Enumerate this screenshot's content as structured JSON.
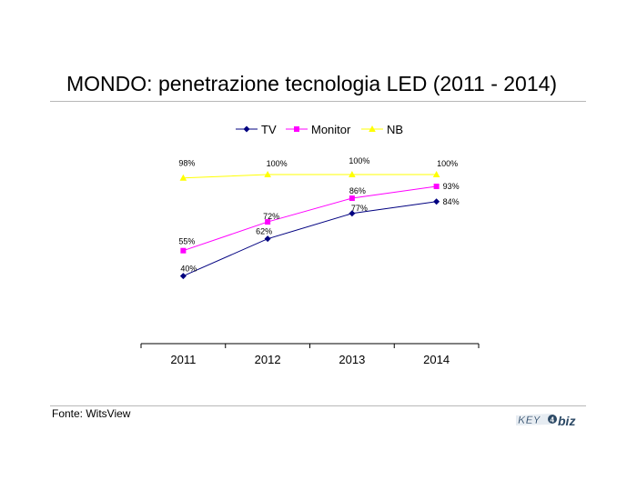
{
  "title": "MONDO: penetrazione tecnologia LED (2011 - 2014)",
  "source": "Fonte: WitsView",
  "logo_text": "KEY4biz",
  "chart_data": {
    "type": "line",
    "categories": [
      "2011",
      "2012",
      "2013",
      "2014"
    ],
    "ylim": [
      0,
      100
    ],
    "grid": false,
    "legend_position": "top",
    "series": [
      {
        "name": "TV",
        "values": [
          40,
          62,
          77,
          84
        ],
        "labels": [
          "40%",
          "62%",
          "77%",
          "84%"
        ],
        "color": "#000080",
        "marker": "diamond"
      },
      {
        "name": "Monitor",
        "values": [
          55,
          72,
          86,
          93
        ],
        "labels": [
          "55%",
          "72%",
          "86%",
          "93%"
        ],
        "color": "#ff00ff",
        "marker": "square"
      },
      {
        "name": "NB",
        "values": [
          98,
          100,
          100,
          100
        ],
        "labels": [
          "98%",
          "100%",
          "100%",
          "100%"
        ],
        "color": "#ffff00",
        "marker": "triangle"
      }
    ]
  }
}
